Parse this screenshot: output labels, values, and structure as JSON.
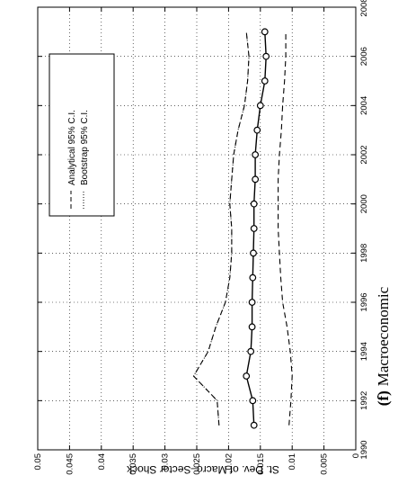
{
  "caption": {
    "marker": "(f)",
    "text": "Macroeconomic"
  },
  "chart_data": {
    "type": "line",
    "orientation": "rotated-90-ccw",
    "xlabel": "",
    "ylabel": "St. Dev. of Macro–Sector Shock",
    "xlim": [
      1990,
      2008
    ],
    "ylim": [
      0,
      0.05
    ],
    "xticks": [
      1990,
      1992,
      1994,
      1996,
      1998,
      2000,
      2002,
      2004,
      2006,
      2008
    ],
    "yticks": [
      0,
      0.005,
      0.01,
      0.015,
      0.02,
      0.025,
      0.03,
      0.035,
      0.04,
      0.045,
      0.05
    ],
    "ytick_labels": [
      "0",
      "0.005",
      "0.01",
      "0.015",
      "0.02",
      "0.025",
      "0.03",
      "0.035",
      "0.04",
      "0.045",
      "0.05"
    ],
    "grid": true,
    "legend_position": "top-left",
    "x": [
      1991,
      1992,
      1993,
      1994,
      1995,
      1996,
      1997,
      1998,
      1999,
      2000,
      2001,
      2002,
      2003,
      2004,
      2005,
      2006,
      2007
    ],
    "series": [
      {
        "name": "",
        "style": "solid-circle",
        "values": [
          0.016,
          0.0162,
          0.0172,
          0.0165,
          0.0163,
          0.0163,
          0.0162,
          0.0161,
          0.016,
          0.016,
          0.0158,
          0.0158,
          0.0155,
          0.015,
          0.0143,
          0.0141,
          0.0143
        ]
      },
      {
        "name": "Analytical 95% C.I.",
        "style": "dashed",
        "values": [
          0.0215,
          0.0218,
          0.0255,
          0.0232,
          0.022,
          0.0205,
          0.0198,
          0.0195,
          0.0195,
          0.0198,
          0.0195,
          0.0192,
          0.0185,
          0.0175,
          0.017,
          0.0168,
          0.0172
        ]
      },
      {
        "name": "Bootstrap 95% C.I.",
        "style": "dotted",
        "values": [
          0.0215,
          0.0218,
          0.0255,
          0.0232,
          0.022,
          0.0205,
          0.0198,
          0.0195,
          0.0195,
          0.0198,
          0.0195,
          0.0192,
          0.0185,
          0.0175,
          0.017,
          0.0168,
          0.0172
        ]
      },
      {
        "name": "",
        "style": "dashed",
        "values": [
          0.0105,
          0.0102,
          0.01,
          0.0103,
          0.0108,
          0.0115,
          0.0118,
          0.012,
          0.0122,
          0.0122,
          0.0122,
          0.012,
          0.0117,
          0.0115,
          0.0112,
          0.011,
          0.011
        ]
      }
    ]
  }
}
